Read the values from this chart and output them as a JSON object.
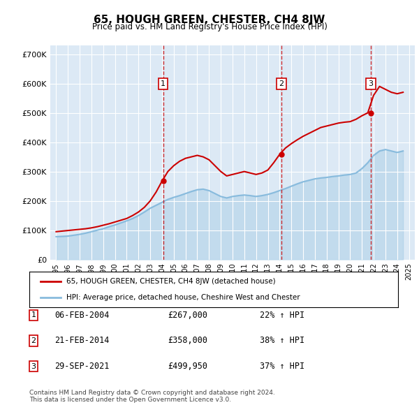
{
  "title": "65, HOUGH GREEN, CHESTER, CH4 8JW",
  "subtitle": "Price paid vs. HM Land Registry's House Price Index (HPI)",
  "ylabel": "",
  "ylim": [
    0,
    730000
  ],
  "yticks": [
    0,
    100000,
    200000,
    300000,
    400000,
    500000,
    600000,
    700000
  ],
  "ytick_labels": [
    "£0",
    "£100K",
    "£200K",
    "£300K",
    "£400K",
    "£500K",
    "£600K",
    "£700K"
  ],
  "bg_color": "#dce9f5",
  "plot_bg_color": "#dce9f5",
  "grid_color": "#ffffff",
  "red_color": "#cc0000",
  "blue_color": "#88bbdd",
  "sale_dates": [
    "2004-02-06",
    "2014-02-21",
    "2021-09-29"
  ],
  "sale_prices": [
    267000,
    358000,
    499950
  ],
  "sale_labels": [
    "1",
    "2",
    "3"
  ],
  "legend_red": "65, HOUGH GREEN, CHESTER, CH4 8JW (detached house)",
  "legend_blue": "HPI: Average price, detached house, Cheshire West and Chester",
  "table_rows": [
    {
      "label": "1",
      "date": "06-FEB-2004",
      "price": "£267,000",
      "pct": "22% ↑ HPI"
    },
    {
      "label": "2",
      "date": "21-FEB-2014",
      "price": "£358,000",
      "pct": "38% ↑ HPI"
    },
    {
      "label": "3",
      "date": "29-SEP-2021",
      "price": "£499,950",
      "pct": "37% ↑ HPI"
    }
  ],
  "footer": "Contains HM Land Registry data © Crown copyright and database right 2024.\nThis data is licensed under the Open Government Licence v3.0.",
  "hpi_x": [
    1995.0,
    1995.5,
    1996.0,
    1996.5,
    1997.0,
    1997.5,
    1998.0,
    1998.5,
    1999.0,
    1999.5,
    2000.0,
    2000.5,
    2001.0,
    2001.5,
    2002.0,
    2002.5,
    2003.0,
    2003.5,
    2004.0,
    2004.5,
    2005.0,
    2005.5,
    2006.0,
    2006.5,
    2007.0,
    2007.5,
    2008.0,
    2008.5,
    2009.0,
    2009.5,
    2010.0,
    2010.5,
    2011.0,
    2011.5,
    2012.0,
    2012.5,
    2013.0,
    2013.5,
    2014.0,
    2014.5,
    2015.0,
    2015.5,
    2016.0,
    2016.5,
    2017.0,
    2017.5,
    2018.0,
    2018.5,
    2019.0,
    2019.5,
    2020.0,
    2020.5,
    2021.0,
    2021.5,
    2022.0,
    2022.5,
    2023.0,
    2023.5,
    2024.0,
    2024.5
  ],
  "hpi_y": [
    78000,
    79000,
    80000,
    83000,
    86000,
    90000,
    95000,
    100000,
    105000,
    112000,
    118000,
    125000,
    132000,
    140000,
    150000,
    162000,
    175000,
    185000,
    195000,
    205000,
    212000,
    218000,
    225000,
    232000,
    238000,
    240000,
    235000,
    225000,
    215000,
    210000,
    215000,
    218000,
    220000,
    218000,
    215000,
    218000,
    222000,
    228000,
    235000,
    242000,
    250000,
    258000,
    265000,
    270000,
    275000,
    278000,
    280000,
    283000,
    285000,
    288000,
    290000,
    295000,
    310000,
    330000,
    355000,
    370000,
    375000,
    370000,
    365000,
    370000
  ],
  "price_x": [
    1995.0,
    1995.5,
    1996.0,
    1996.5,
    1997.0,
    1997.5,
    1998.0,
    1998.5,
    1999.0,
    1999.5,
    2000.0,
    2000.5,
    2001.0,
    2001.5,
    2002.0,
    2002.5,
    2003.0,
    2003.5,
    2004.0,
    2004.5,
    2005.0,
    2005.5,
    2006.0,
    2006.5,
    2007.0,
    2007.5,
    2008.0,
    2008.5,
    2009.0,
    2009.5,
    2010.0,
    2010.5,
    2011.0,
    2011.5,
    2012.0,
    2012.5,
    2013.0,
    2013.5,
    2014.0,
    2014.5,
    2015.0,
    2015.5,
    2016.0,
    2016.5,
    2017.0,
    2017.5,
    2018.0,
    2018.5,
    2019.0,
    2019.5,
    2020.0,
    2020.5,
    2021.0,
    2021.5,
    2022.0,
    2022.5,
    2023.0,
    2023.5,
    2024.0,
    2024.5
  ],
  "price_y": [
    95000,
    97000,
    99000,
    101000,
    103000,
    105000,
    108000,
    112000,
    117000,
    122000,
    128000,
    134000,
    140000,
    150000,
    162000,
    178000,
    200000,
    230000,
    267000,
    300000,
    320000,
    335000,
    345000,
    350000,
    355000,
    350000,
    340000,
    320000,
    300000,
    285000,
    290000,
    295000,
    300000,
    295000,
    290000,
    295000,
    305000,
    330000,
    358000,
    380000,
    395000,
    408000,
    420000,
    430000,
    440000,
    450000,
    455000,
    460000,
    465000,
    468000,
    470000,
    478000,
    490000,
    499950,
    560000,
    590000,
    580000,
    570000,
    565000,
    570000
  ],
  "xlim": [
    1994.5,
    2025.5
  ],
  "xtick_years": [
    1995,
    1996,
    1997,
    1998,
    1999,
    2000,
    2001,
    2002,
    2003,
    2004,
    2005,
    2006,
    2007,
    2008,
    2009,
    2010,
    2011,
    2012,
    2013,
    2014,
    2015,
    2016,
    2017,
    2018,
    2019,
    2020,
    2021,
    2022,
    2023,
    2024,
    2025
  ]
}
